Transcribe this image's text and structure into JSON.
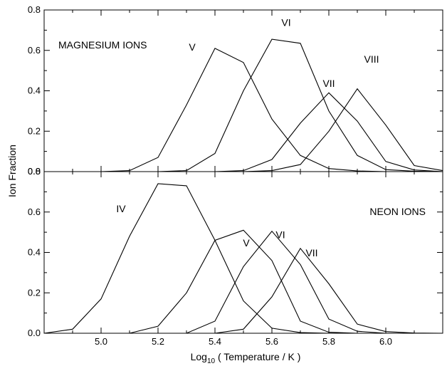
{
  "chart_data": [
    {
      "type": "line",
      "panel": "top",
      "title": "MAGNESIUM IONS",
      "xlabel": "",
      "ylabel": "Ion Fraction",
      "xlim": [
        4.8,
        6.2
      ],
      "ylim": [
        0.0,
        0.8
      ],
      "yticks": [
        0.0,
        0.2,
        0.4,
        0.6,
        0.8
      ],
      "ytick_labels": [
        "0.0",
        "0.2",
        "0.4",
        "0.6",
        "0.8"
      ],
      "grid": false,
      "series": [
        {
          "name": "V",
          "x": [
            4.8,
            5.0,
            5.1,
            5.2,
            5.3,
            5.4,
            5.5,
            5.6,
            5.7,
            5.8,
            5.9,
            6.0,
            6.2
          ],
          "y": [
            0.0,
            0.0,
            0.005,
            0.07,
            0.33,
            0.61,
            0.54,
            0.26,
            0.08,
            0.015,
            0.003,
            0.0,
            0.0
          ]
        },
        {
          "name": "VI",
          "x": [
            4.8,
            5.2,
            5.3,
            5.4,
            5.5,
            5.6,
            5.7,
            5.8,
            5.9,
            6.0,
            6.1,
            6.2
          ],
          "y": [
            0.0,
            0.0,
            0.005,
            0.09,
            0.4,
            0.655,
            0.635,
            0.3,
            0.08,
            0.01,
            0.002,
            0.0
          ]
        },
        {
          "name": "VII",
          "x": [
            4.8,
            5.4,
            5.5,
            5.6,
            5.7,
            5.8,
            5.9,
            6.0,
            6.1,
            6.2
          ],
          "y": [
            0.0,
            0.0,
            0.005,
            0.06,
            0.24,
            0.39,
            0.25,
            0.05,
            0.008,
            0.0
          ]
        },
        {
          "name": "VIII",
          "x": [
            4.8,
            5.5,
            5.6,
            5.7,
            5.8,
            5.9,
            6.0,
            6.1,
            6.2
          ],
          "y": [
            0.0,
            0.0,
            0.005,
            0.035,
            0.2,
            0.41,
            0.23,
            0.03,
            0.005
          ]
        }
      ],
      "label_positions": [
        {
          "text": "V",
          "x": 5.32,
          "y": 0.6
        },
        {
          "text": "VI",
          "x": 5.65,
          "y": 0.72
        },
        {
          "text": "VII",
          "x": 5.8,
          "y": 0.42
        },
        {
          "text": "VIII",
          "x": 5.95,
          "y": 0.54
        }
      ]
    },
    {
      "type": "line",
      "panel": "bottom",
      "title": "NEON IONS",
      "xlabel": "Log₁₀ ( Temperature / K )",
      "ylabel": "Ion Fraction",
      "xlim": [
        4.8,
        6.2
      ],
      "ylim": [
        0.0,
        0.8
      ],
      "xticks": [
        5.0,
        5.2,
        5.4,
        5.6,
        5.8,
        6.0
      ],
      "xtick_labels": [
        "5.0",
        "5.2",
        "5.4",
        "5.6",
        "5.8",
        "6.0"
      ],
      "yticks": [
        0.0,
        0.2,
        0.4,
        0.6,
        0.8
      ],
      "ytick_labels": [
        "0.0",
        "0.2",
        "0.4",
        "0.6",
        "0.8"
      ],
      "grid": false,
      "series": [
        {
          "name": "IV",
          "x": [
            4.8,
            4.9,
            5.0,
            5.1,
            5.2,
            5.3,
            5.4,
            5.5,
            5.6,
            5.7,
            5.8,
            6.2
          ],
          "y": [
            0.0,
            0.02,
            0.17,
            0.48,
            0.74,
            0.73,
            0.46,
            0.16,
            0.025,
            0.003,
            0.0,
            0.0
          ]
        },
        {
          "name": "V",
          "x": [
            4.8,
            5.1,
            5.2,
            5.3,
            5.4,
            5.5,
            5.6,
            5.7,
            5.8,
            5.9,
            6.2
          ],
          "y": [
            0.0,
            0.0,
            0.035,
            0.2,
            0.46,
            0.51,
            0.36,
            0.06,
            0.005,
            0.0,
            0.0
          ]
        },
        {
          "name": "VI",
          "x": [
            4.8,
            5.3,
            5.4,
            5.5,
            5.6,
            5.7,
            5.8,
            5.9,
            6.0,
            6.2
          ],
          "y": [
            0.0,
            0.0,
            0.06,
            0.33,
            0.505,
            0.34,
            0.07,
            0.01,
            0.0,
            0.0
          ]
        },
        {
          "name": "VII",
          "x": [
            4.8,
            5.4,
            5.5,
            5.6,
            5.7,
            5.8,
            5.9,
            6.0,
            6.1,
            6.2
          ],
          "y": [
            0.0,
            0.0,
            0.02,
            0.18,
            0.42,
            0.245,
            0.045,
            0.008,
            0.001,
            0.0
          ]
        }
      ],
      "label_positions": [
        {
          "text": "IV",
          "x": 5.07,
          "y": 0.6
        },
        {
          "text": "V",
          "x": 5.51,
          "y": 0.43
        },
        {
          "text": "VI",
          "x": 5.63,
          "y": 0.47
        },
        {
          "text": "VII",
          "x": 5.74,
          "y": 0.38
        }
      ]
    }
  ]
}
